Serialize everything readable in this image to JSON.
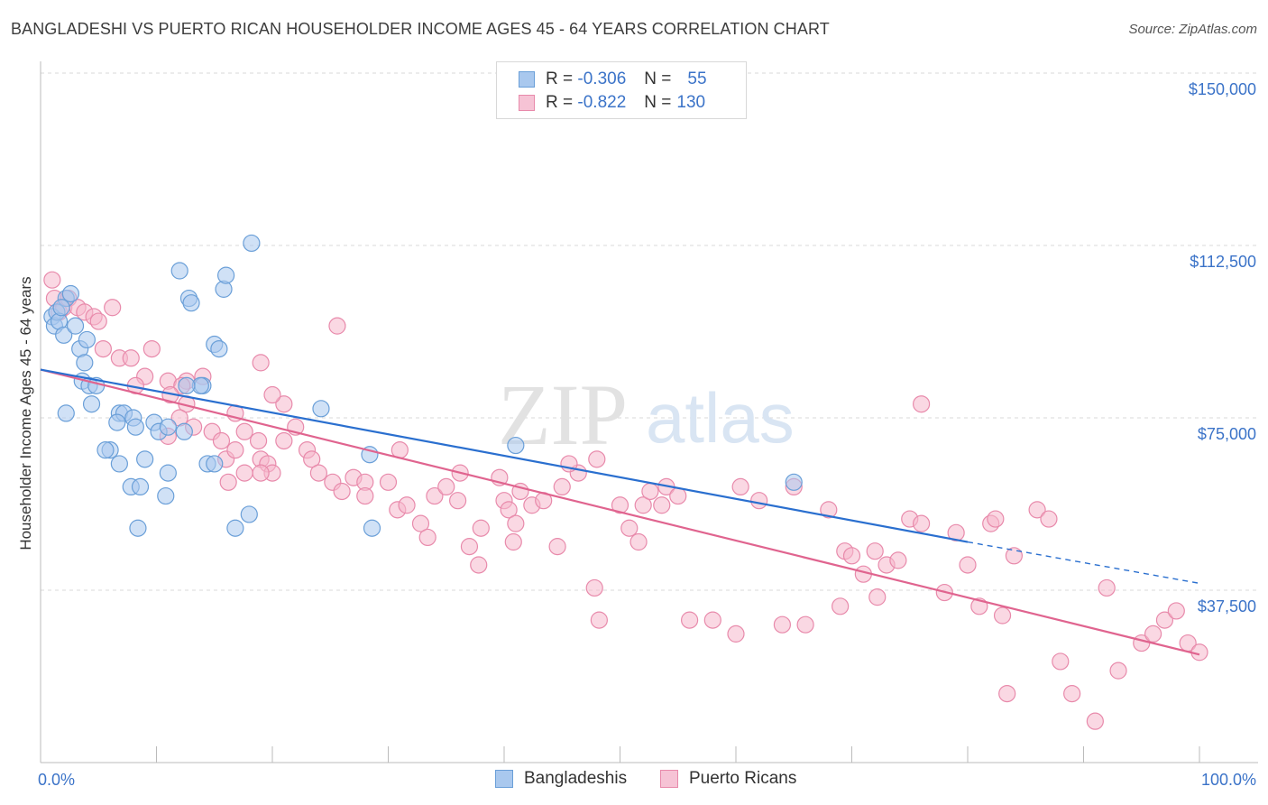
{
  "title": "BANGLADESHI VS PUERTO RICAN HOUSEHOLDER INCOME AGES 45 - 64 YEARS CORRELATION CHART",
  "source": "Source: ZipAtlas.com",
  "watermark": {
    "zip": "ZIP",
    "atlas": "atlas"
  },
  "legend": {
    "row1": {
      "r_label": "R =",
      "r_value": "-0.306",
      "n_label": "N =",
      "n_value": "55"
    },
    "row2": {
      "r_label": "R =",
      "r_value": "-0.822",
      "n_label": "N =",
      "n_value": "130"
    }
  },
  "bottom_legend": {
    "bangladeshis": "Bangladeshis",
    "puerto_ricans": "Puerto Ricans"
  },
  "colors": {
    "blue_fill": "#a9c8ee",
    "blue_stroke": "#6a9fd8",
    "blue_line": "#2a6fcf",
    "pink_fill": "#f6b8cc",
    "pink_stroke": "#e88aab",
    "pink_line": "#e0648f",
    "tick_text": "#3b73c8",
    "grid": "#d9d9d9"
  },
  "chart_data": {
    "type": "scatter",
    "title": "BANGLADESHI VS PUERTO RICAN HOUSEHOLDER INCOME AGES 45 - 64 YEARS CORRELATION CHART",
    "xlabel": "",
    "ylabel": "Householder Income Ages 45 - 64 years",
    "xlim": [
      0,
      100
    ],
    "ylim": [
      0,
      155000
    ],
    "x_tick_labels": [
      "0.0%",
      "100.0%"
    ],
    "y_ticks": [
      37500,
      75000,
      112500,
      150000
    ],
    "y_tick_labels": [
      "$37,500",
      "$75,000",
      "$112,500",
      "$150,000"
    ],
    "series": [
      {
        "name": "Bangladeshis",
        "r": -0.306,
        "n": 55,
        "trend": {
          "x0": 0,
          "y0": 85500,
          "x1": 80,
          "y1": 48000,
          "dash_x1": 100,
          "dash_y1": 39000
        },
        "points": [
          [
            1,
            97
          ],
          [
            1.2,
            95
          ],
          [
            1.4,
            98
          ],
          [
            1.6,
            96
          ],
          [
            2.2,
            101
          ],
          [
            2,
            93
          ],
          [
            3,
            95
          ],
          [
            3.4,
            90
          ],
          [
            3.8,
            87
          ],
          [
            4,
            92
          ],
          [
            3.6,
            83
          ],
          [
            4.2,
            82
          ],
          [
            4.8,
            82
          ],
          [
            2.2,
            76
          ],
          [
            4.4,
            78
          ],
          [
            6.8,
            76
          ],
          [
            7.2,
            76
          ],
          [
            8,
            75
          ],
          [
            6.6,
            74
          ],
          [
            9.8,
            74
          ],
          [
            10.2,
            72
          ],
          [
            11,
            73
          ],
          [
            12.4,
            72
          ],
          [
            6,
            68
          ],
          [
            5.6,
            68
          ],
          [
            6.8,
            65
          ],
          [
            9,
            66
          ],
          [
            11,
            63
          ],
          [
            14.4,
            65
          ],
          [
            15,
            65
          ],
          [
            7.8,
            60
          ],
          [
            8.6,
            60
          ],
          [
            10.8,
            58
          ],
          [
            8.4,
            51
          ],
          [
            16.8,
            51
          ],
          [
            18,
            54
          ],
          [
            12,
            107
          ],
          [
            12.8,
            101
          ],
          [
            13,
            100
          ],
          [
            15.8,
            103
          ],
          [
            16,
            106
          ],
          [
            18.2,
            113
          ],
          [
            15,
            91
          ],
          [
            15.4,
            90
          ],
          [
            14,
            82
          ],
          [
            13.8,
            82
          ],
          [
            28.6,
            51
          ],
          [
            28.4,
            67
          ],
          [
            24.2,
            77
          ],
          [
            41,
            69
          ],
          [
            65,
            61
          ],
          [
            1.8,
            99
          ],
          [
            2.6,
            102
          ],
          [
            12.6,
            82
          ],
          [
            8.2,
            73
          ]
        ]
      },
      {
        "name": "Puerto Ricans",
        "r": -0.822,
        "n": 130,
        "trend": {
          "x0": 0,
          "y0": 85500,
          "x1": 100,
          "y1": 23500
        },
        "points": [
          [
            1,
            105
          ],
          [
            1.2,
            101
          ],
          [
            1.6,
            98
          ],
          [
            2,
            99
          ],
          [
            2.4,
            101
          ],
          [
            3.2,
            99
          ],
          [
            3.8,
            98
          ],
          [
            4.6,
            97
          ],
          [
            5,
            96
          ],
          [
            6.2,
            99
          ],
          [
            5.4,
            90
          ],
          [
            6.8,
            88
          ],
          [
            7.8,
            88
          ],
          [
            9.6,
            90
          ],
          [
            9,
            84
          ],
          [
            11,
            83
          ],
          [
            12.6,
            83
          ],
          [
            12.2,
            82
          ],
          [
            14,
            84
          ],
          [
            8.2,
            82
          ],
          [
            11.2,
            80
          ],
          [
            12.6,
            78
          ],
          [
            13.2,
            73
          ],
          [
            14.8,
            72
          ],
          [
            15.6,
            70
          ],
          [
            11,
            71
          ],
          [
            12,
            75
          ],
          [
            16.8,
            76
          ],
          [
            17.6,
            72
          ],
          [
            18.8,
            70
          ],
          [
            19,
            66
          ],
          [
            16,
            66
          ],
          [
            16.8,
            68
          ],
          [
            17.6,
            63
          ],
          [
            16.2,
            61
          ],
          [
            19.6,
            65
          ],
          [
            20,
            63
          ],
          [
            21,
            70
          ],
          [
            22,
            73
          ],
          [
            23,
            68
          ],
          [
            23.4,
            66
          ],
          [
            24,
            63
          ],
          [
            25.2,
            61
          ],
          [
            26,
            59
          ],
          [
            27,
            62
          ],
          [
            28,
            61
          ],
          [
            28,
            58
          ],
          [
            21,
            78
          ],
          [
            19,
            87
          ],
          [
            20,
            80
          ],
          [
            25.6,
            95
          ],
          [
            30,
            61
          ],
          [
            31,
            68
          ],
          [
            30.8,
            55
          ],
          [
            31.6,
            56
          ],
          [
            32.8,
            52
          ],
          [
            33.4,
            49
          ],
          [
            34,
            58
          ],
          [
            35,
            60
          ],
          [
            36,
            57
          ],
          [
            36.2,
            63
          ],
          [
            37,
            47
          ],
          [
            37.8,
            43
          ],
          [
            38,
            51
          ],
          [
            39.6,
            62
          ],
          [
            40,
            57
          ],
          [
            40.4,
            55
          ],
          [
            40.8,
            48
          ],
          [
            41,
            52
          ],
          [
            41.4,
            59
          ],
          [
            42.4,
            56
          ],
          [
            43.4,
            57
          ],
          [
            44.6,
            47
          ],
          [
            45,
            60
          ],
          [
            46.4,
            63
          ],
          [
            45.6,
            65
          ],
          [
            48,
            66
          ],
          [
            47.8,
            38
          ],
          [
            48.2,
            31
          ],
          [
            50,
            56
          ],
          [
            50.8,
            51
          ],
          [
            51.6,
            48
          ],
          [
            52,
            56
          ],
          [
            52.6,
            59
          ],
          [
            53.6,
            56
          ],
          [
            54,
            60
          ],
          [
            55,
            58
          ],
          [
            56,
            31
          ],
          [
            58,
            31
          ],
          [
            60,
            28
          ],
          [
            60.4,
            60
          ],
          [
            62,
            57
          ],
          [
            64,
            30
          ],
          [
            65,
            60
          ],
          [
            66,
            30
          ],
          [
            68,
            55
          ],
          [
            69,
            34
          ],
          [
            69.4,
            46
          ],
          [
            70,
            45
          ],
          [
            71,
            41
          ],
          [
            72,
            46
          ],
          [
            72.2,
            36
          ],
          [
            73,
            43
          ],
          [
            74,
            44
          ],
          [
            75,
            53
          ],
          [
            76,
            52
          ],
          [
            78,
            37
          ],
          [
            79,
            50
          ],
          [
            80,
            43
          ],
          [
            81,
            34
          ],
          [
            82,
            52
          ],
          [
            82.4,
            53
          ],
          [
            83,
            32
          ],
          [
            83.4,
            15
          ],
          [
            84,
            45
          ],
          [
            86,
            55
          ],
          [
            87,
            53
          ],
          [
            88,
            22
          ],
          [
            89,
            15
          ],
          [
            91,
            9
          ],
          [
            92,
            38
          ],
          [
            93,
            20
          ],
          [
            95,
            26
          ],
          [
            96,
            28
          ],
          [
            97,
            31
          ],
          [
            98,
            33
          ],
          [
            99,
            26
          ],
          [
            100,
            24
          ],
          [
            76,
            78
          ],
          [
            19,
            63
          ]
        ]
      }
    ]
  }
}
